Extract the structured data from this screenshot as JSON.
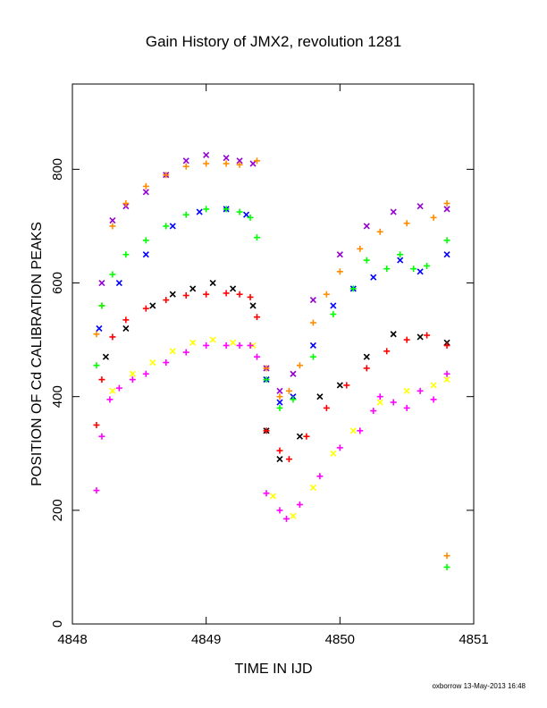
{
  "chart_data": {
    "type": "scatter",
    "title": "Gain History of JMX2, revolution 1281",
    "xlabel": "TIME IN IJD",
    "ylabel": "POSITION OF Cd CALIBRATION PEAKS",
    "footer": "oxborrow 13-May-2013 16:48",
    "xlim": [
      4848,
      4851
    ],
    "ylim": [
      0,
      950
    ],
    "xticks": [
      4848,
      4849,
      4850,
      4851
    ],
    "xtick_labels": [
      "4848",
      "4849",
      "4850",
      "4851"
    ],
    "yticks": [
      0,
      200,
      400,
      600,
      800
    ],
    "ytick_labels": [
      "0",
      "200",
      "400",
      "600",
      "800"
    ],
    "grid": false,
    "series": [
      {
        "marker": "x",
        "color": "#9400d3",
        "x": [
          4848.22,
          4848.3,
          4848.4,
          4848.55,
          4848.7,
          4848.85,
          4849.0,
          4849.15,
          4849.25,
          4849.35,
          4849.45,
          4849.55,
          4849.65,
          4849.8,
          4850.0,
          4850.2,
          4850.4,
          4850.6,
          4850.8
        ],
        "y": [
          600,
          710,
          735,
          760,
          790,
          815,
          825,
          820,
          815,
          810,
          450,
          410,
          440,
          570,
          650,
          700,
          725,
          735,
          730
        ]
      },
      {
        "marker": "+",
        "color": "#ff8c00",
        "x": [
          4848.18,
          4848.22,
          4848.3,
          4848.4,
          4848.55,
          4848.7,
          4848.85,
          4849.0,
          4849.15,
          4849.25,
          4849.38,
          4849.45,
          4849.55,
          4849.62,
          4849.7,
          4849.8,
          4849.9,
          4850.0,
          4850.15,
          4850.3,
          4850.5,
          4850.7,
          4850.8
        ],
        "y": [
          510,
          560,
          700,
          740,
          770,
          790,
          805,
          810,
          810,
          808,
          815,
          450,
          400,
          410,
          455,
          530,
          580,
          620,
          660,
          690,
          705,
          715,
          740
        ]
      },
      {
        "marker": "x",
        "color": "#0000ff",
        "x": [
          4848.2,
          4848.35,
          4848.55,
          4848.75,
          4848.95,
          4849.15,
          4849.3,
          4849.45,
          4849.55,
          4849.65,
          4849.8,
          4849.95,
          4850.1,
          4850.25,
          4850.45,
          4850.6,
          4850.8
        ],
        "y": [
          520,
          600,
          650,
          700,
          725,
          730,
          720,
          430,
          390,
          400,
          490,
          560,
          590,
          610,
          640,
          620,
          650
        ]
      },
      {
        "marker": "+",
        "color": "#00ff00",
        "x": [
          4848.18,
          4848.22,
          4848.3,
          4848.4,
          4848.55,
          4848.7,
          4848.85,
          4849.0,
          4849.15,
          4849.25,
          4849.33,
          4849.38,
          4849.45,
          4849.55,
          4849.65,
          4849.8,
          4849.95,
          4850.1,
          4850.2,
          4850.35,
          4850.45,
          4850.55,
          4850.65,
          4850.8
        ],
        "y": [
          455,
          560,
          615,
          650,
          675,
          700,
          720,
          730,
          730,
          725,
          715,
          680,
          430,
          380,
          395,
          470,
          545,
          590,
          640,
          625,
          650,
          625,
          630,
          675
        ]
      },
      {
        "marker": "x",
        "color": "#000000",
        "x": [
          4848.25,
          4848.4,
          4848.6,
          4848.75,
          4848.9,
          4849.05,
          4849.2,
          4849.35,
          4849.45,
          4849.55,
          4849.7,
          4849.85,
          4850.0,
          4850.2,
          4850.4,
          4850.6,
          4850.8
        ],
        "y": [
          470,
          520,
          560,
          580,
          590,
          600,
          590,
          560,
          340,
          290,
          330,
          400,
          420,
          470,
          510,
          505,
          495
        ]
      },
      {
        "marker": "+",
        "color": "#ff0000",
        "x": [
          4848.18,
          4848.22,
          4848.3,
          4848.4,
          4848.55,
          4848.7,
          4848.85,
          4849.0,
          4849.15,
          4849.25,
          4849.33,
          4849.38,
          4849.45,
          4849.55,
          4849.62,
          4849.75,
          4849.9,
          4850.05,
          4850.2,
          4850.35,
          4850.5,
          4850.65,
          4850.8
        ],
        "y": [
          350,
          430,
          505,
          535,
          555,
          570,
          578,
          580,
          582,
          580,
          575,
          540,
          340,
          305,
          290,
          330,
          380,
          420,
          450,
          480,
          500,
          508,
          490
        ]
      },
      {
        "marker": "x",
        "color": "#ffff00",
        "x": [
          4848.3,
          4848.45,
          4848.6,
          4848.75,
          4848.9,
          4849.05,
          4849.2,
          4849.35,
          4849.5,
          4849.65,
          4849.8,
          4849.95,
          4850.1,
          4850.3,
          4850.5,
          4850.7,
          4850.8
        ],
        "y": [
          410,
          440,
          460,
          480,
          495,
          500,
          495,
          490,
          225,
          190,
          240,
          300,
          340,
          390,
          410,
          420,
          430
        ]
      },
      {
        "marker": "+",
        "color": "#ff00ff",
        "x": [
          4848.18,
          4848.22,
          4848.28,
          4848.35,
          4848.45,
          4848.55,
          4848.7,
          4848.85,
          4849.0,
          4849.15,
          4849.25,
          4849.33,
          4849.38,
          4849.45,
          4849.55,
          4849.6,
          4849.7,
          4849.85,
          4850.0,
          4850.15,
          4850.25,
          4850.3,
          4850.4,
          4850.5,
          4850.6,
          4850.7,
          4850.8
        ],
        "y": [
          235,
          330,
          395,
          415,
          430,
          440,
          460,
          478,
          490,
          490,
          490,
          490,
          470,
          230,
          200,
          185,
          210,
          260,
          310,
          340,
          375,
          400,
          390,
          380,
          410,
          395,
          440
        ]
      },
      {
        "marker": "+",
        "color": "#ff8c00",
        "x": [
          4850.8
        ],
        "y": [
          120
        ]
      },
      {
        "marker": "+",
        "color": "#00ff00",
        "x": [
          4850.8
        ],
        "y": [
          100
        ]
      }
    ]
  }
}
